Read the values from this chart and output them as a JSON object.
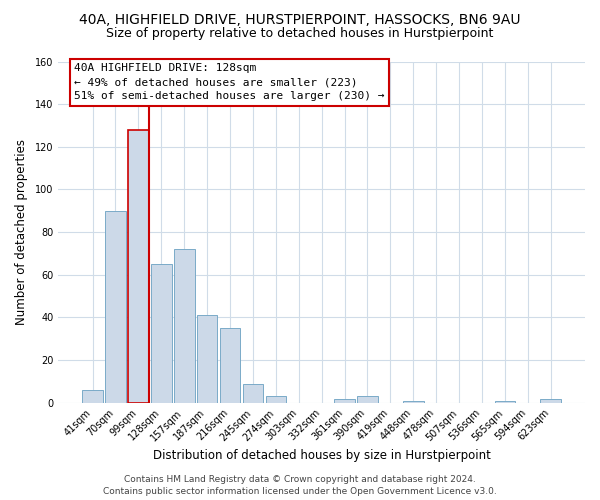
{
  "title": "40A, HIGHFIELD DRIVE, HURSTPIERPOINT, HASSOCKS, BN6 9AU",
  "subtitle": "Size of property relative to detached houses in Hurstpierpoint",
  "xlabel": "Distribution of detached houses by size in Hurstpierpoint",
  "ylabel": "Number of detached properties",
  "bar_labels": [
    "41sqm",
    "70sqm",
    "99sqm",
    "128sqm",
    "157sqm",
    "187sqm",
    "216sqm",
    "245sqm",
    "274sqm",
    "303sqm",
    "332sqm",
    "361sqm",
    "390sqm",
    "419sqm",
    "448sqm",
    "478sqm",
    "507sqm",
    "536sqm",
    "565sqm",
    "594sqm",
    "623sqm"
  ],
  "bar_heights": [
    6,
    90,
    128,
    65,
    72,
    41,
    35,
    9,
    3,
    0,
    0,
    2,
    3,
    0,
    1,
    0,
    0,
    0,
    1,
    0,
    2
  ],
  "bar_color": "#ccd9e8",
  "bar_edge_color": "#7aaac8",
  "highlight_index": 2,
  "highlight_edge_color": "#cc0000",
  "vline_color": "#cc0000",
  "ylim": [
    0,
    160
  ],
  "yticks": [
    0,
    20,
    40,
    60,
    80,
    100,
    120,
    140,
    160
  ],
  "annotation_title": "40A HIGHFIELD DRIVE: 128sqm",
  "annotation_line1": "← 49% of detached houses are smaller (223)",
  "annotation_line2": "51% of semi-detached houses are larger (230) →",
  "footer_line1": "Contains HM Land Registry data © Crown copyright and database right 2024.",
  "footer_line2": "Contains public sector information licensed under the Open Government Licence v3.0.",
  "background_color": "#ffffff",
  "grid_color": "#d0dce8",
  "title_fontsize": 10,
  "subtitle_fontsize": 9,
  "axis_label_fontsize": 8.5,
  "tick_fontsize": 7,
  "annotation_fontsize": 8,
  "footer_fontsize": 6.5
}
